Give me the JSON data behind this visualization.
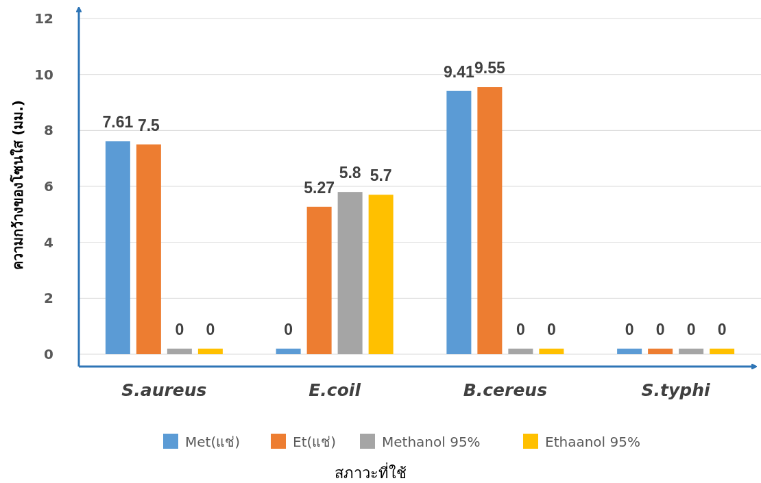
{
  "chart_data": {
    "type": "bar",
    "xlabel": "สภาวะที่ใช้",
    "ylabel": "ความกว้างของโซนใส (มม.)",
    "categories": [
      "S.aureus",
      "E.coil",
      "B.cereus",
      "S.typhi"
    ],
    "series": [
      {
        "name": "Met(แช่)",
        "color": "#5b9bd5",
        "values": [
          7.61,
          0.2,
          9.41,
          0.2
        ],
        "value_labels": [
          "7.61",
          "0",
          "9.41",
          "0"
        ]
      },
      {
        "name": "Et(แช่)",
        "color": "#ed7d31",
        "values": [
          7.5,
          5.27,
          9.55,
          0.2
        ],
        "value_labels": [
          "7.5",
          "5.27",
          "9.55",
          "0"
        ]
      },
      {
        "name": "Methanol 95%",
        "color": "#a5a5a5",
        "values": [
          0.2,
          5.8,
          0.2,
          0.2
        ],
        "value_labels": [
          "0",
          "5.8",
          "0",
          "0"
        ]
      },
      {
        "name": "Ethaanol 95%",
        "color": "#ffc000",
        "values": [
          0.2,
          5.7,
          0.2,
          0.2
        ],
        "value_labels": [
          "0",
          "5.7",
          "0",
          "0"
        ]
      }
    ],
    "ylim": [
      0,
      12
    ],
    "yticks": [
      0,
      2,
      4,
      6,
      8,
      10,
      12
    ],
    "grid": "y",
    "legend": "bottom"
  }
}
